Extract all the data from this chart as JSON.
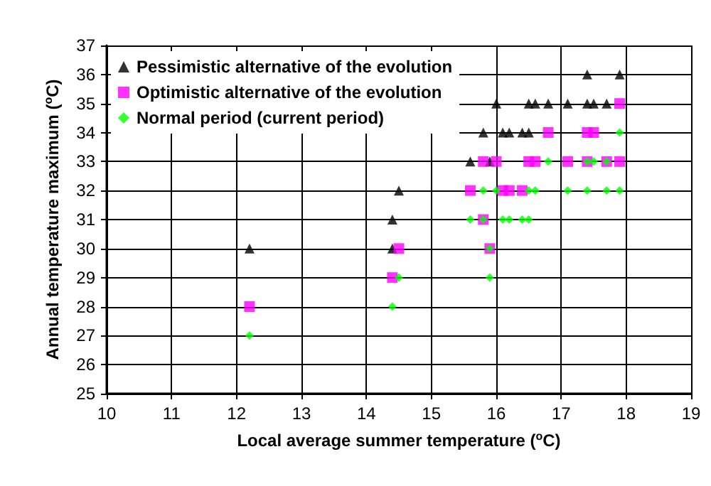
{
  "chart_data": {
    "type": "scatter",
    "xlabel": "Local average summer temperature ($^{o}$C)",
    "ylabel": "Annual temperature maximum ($^{o}$C)",
    "xlim": [
      10,
      19
    ],
    "xticks": [
      10,
      11,
      12,
      13,
      14,
      15,
      16,
      17,
      18,
      19
    ],
    "ylim": [
      25,
      37
    ],
    "yticks": [
      25,
      26,
      27,
      28,
      29,
      30,
      31,
      32,
      33,
      34,
      35,
      36,
      37
    ],
    "grid": true,
    "legend": "top left",
    "series": [
      {
        "name": "Pessimistic alternative of the evolution",
        "color": "#000000",
        "marker": "triangle",
        "x": [
          17.4,
          17.9,
          16.0,
          16.5,
          16.6,
          16.8,
          17.1,
          17.4,
          17.5,
          17.7,
          15.8,
          16.1,
          16.2,
          16.4,
          16.5,
          15.6,
          15.9,
          14.5,
          14.4,
          12.2,
          14.4
        ],
        "values": [
          36,
          36,
          35,
          35,
          35,
          35,
          35,
          35,
          35,
          35,
          34,
          34,
          34,
          34,
          34,
          33,
          33,
          32,
          31,
          30,
          30
        ]
      },
      {
        "name": "Optimistic alternative of the evolution",
        "color": "#ff00ff",
        "marker": "square",
        "x": [
          17.9,
          16.8,
          17.4,
          17.5,
          15.8,
          16.0,
          16.5,
          16.6,
          17.1,
          17.4,
          17.7,
          17.9,
          15.6,
          16.1,
          16.2,
          16.4,
          15.8,
          14.5,
          15.9,
          14.4,
          12.2
        ],
        "values": [
          35,
          34,
          34,
          34,
          33,
          33,
          33,
          33,
          33,
          33,
          33,
          33,
          32,
          32,
          32,
          32,
          31,
          30,
          30,
          29,
          28
        ]
      },
      {
        "name": "Normal period (current period)",
        "color": "#00ff00",
        "marker": "diamond",
        "x": [
          17.9,
          16.8,
          17.4,
          17.5,
          17.7,
          15.8,
          16.0,
          16.5,
          16.6,
          17.1,
          17.4,
          17.7,
          17.9,
          15.6,
          15.8,
          16.1,
          16.2,
          16.4,
          16.5,
          15.9,
          14.5,
          15.9,
          14.4,
          12.2
        ],
        "values": [
          34,
          33,
          33,
          33,
          33,
          32,
          32,
          32,
          32,
          32,
          32,
          32,
          32,
          31,
          31,
          31,
          31,
          31,
          31,
          30,
          29,
          29,
          28,
          27
        ]
      }
    ]
  }
}
